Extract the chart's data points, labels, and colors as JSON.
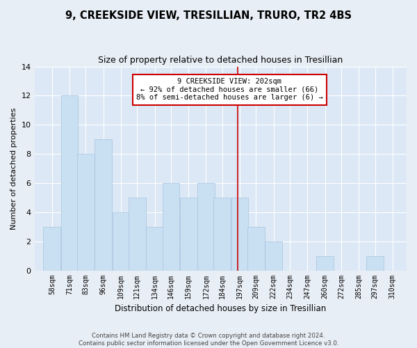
{
  "title": "9, CREEKSIDE VIEW, TRESILLIAN, TRURO, TR2 4BS",
  "subtitle": "Size of property relative to detached houses in Tresillian",
  "xlabel": "Distribution of detached houses by size in Tresillian",
  "ylabel": "Number of detached properties",
  "bar_color": "#c9dff2",
  "bar_edge_color": "#a8c4de",
  "categories": [
    "58sqm",
    "71sqm",
    "83sqm",
    "96sqm",
    "109sqm",
    "121sqm",
    "134sqm",
    "146sqm",
    "159sqm",
    "172sqm",
    "184sqm",
    "197sqm",
    "209sqm",
    "222sqm",
    "234sqm",
    "247sqm",
    "260sqm",
    "272sqm",
    "285sqm",
    "297sqm",
    "310sqm"
  ],
  "values": [
    3,
    12,
    8,
    9,
    4,
    5,
    3,
    6,
    5,
    6,
    5,
    5,
    3,
    2,
    0,
    0,
    1,
    0,
    0,
    1,
    0
  ],
  "bin_starts": [
    58,
    71,
    83,
    96,
    109,
    121,
    134,
    146,
    159,
    172,
    184,
    197,
    209,
    222,
    234,
    247,
    260,
    272,
    285,
    297,
    310
  ],
  "bin_width": 13,
  "property_line_x": 202,
  "annotation_text": "9 CREEKSIDE VIEW: 202sqm\n← 92% of detached houses are smaller (66)\n8% of semi-detached houses are larger (6) →",
  "annotation_box_color": "#cc0000",
  "footer_text": "Contains HM Land Registry data © Crown copyright and database right 2024.\nContains public sector information licensed under the Open Government Licence v3.0.",
  "ylim": [
    0,
    14
  ],
  "yticks": [
    0,
    2,
    4,
    6,
    8,
    10,
    12,
    14
  ],
  "fig_bg_color": "#e8eef5",
  "plot_bg_color": "#dce8f5",
  "grid_color": "#ffffff",
  "title_fontsize": 10.5,
  "subtitle_fontsize": 9
}
